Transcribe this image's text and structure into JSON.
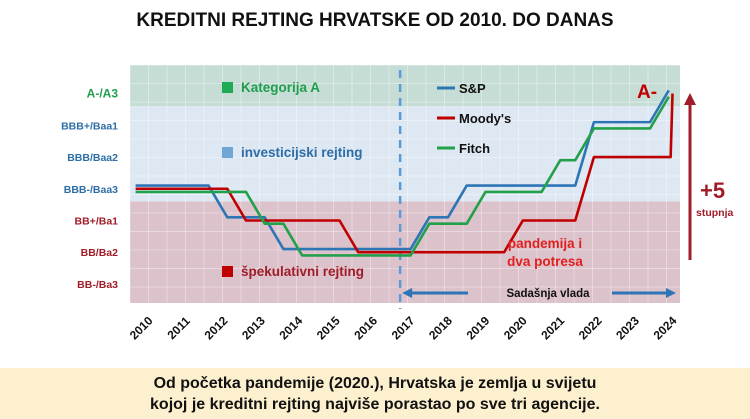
{
  "chart_data": {
    "type": "line",
    "title": "KREDITNI REJTING HRVATSKE OD 2010. DO DANAS",
    "xlabel": "",
    "ylabel": "",
    "x_ticks": [
      "2010",
      "2011",
      "2012",
      "2013",
      "2014",
      "2015",
      "2016",
      "2017",
      "2018",
      "2019",
      "2020",
      "2021",
      "2022",
      "2023",
      "2024"
    ],
    "xlim": [
      2009.7,
      2024.4
    ],
    "y_levels": [
      "BB-/Ba3",
      "BB/Ba2",
      "BB+/Ba1",
      "BBB-/Baa3",
      "BBB/Baa2",
      "BBB+/Baa1",
      "A-/A3"
    ],
    "y_level_colors": [
      "#a01c28",
      "#a01c28",
      "#a01c28",
      "#2e6ea6",
      "#2e6ea6",
      "#2e6ea6",
      "#1f9e4e"
    ],
    "ylim": [
      -0.6,
      6.9
    ],
    "bands": [
      {
        "label": "Kategorija A",
        "from": 5.6,
        "to": 6.9,
        "color": "#c6ddd5",
        "swatch": "#1faa55",
        "text_color": "#1f9e4e"
      },
      {
        "label": "investicijski rejting",
        "from": 2.6,
        "to": 5.6,
        "color": "#dde8f3",
        "swatch": "#6fa6d6",
        "text_color": "#2e6ea6"
      },
      {
        "label": "špekulativni rejting",
        "from": -0.6,
        "to": 2.6,
        "color": "#dcc2ca",
        "swatch": "#c00000",
        "text_color": "#a01c28"
      }
    ],
    "series": [
      {
        "name": "S&P",
        "color": "#2e75b6",
        "offset": 0.1,
        "points": [
          [
            2009.85,
            3
          ],
          [
            2011.8,
            3
          ],
          [
            2012.3,
            2
          ],
          [
            2013.3,
            2
          ],
          [
            2013.8,
            1
          ],
          [
            2017.2,
            1
          ],
          [
            2017.7,
            2
          ],
          [
            2018.2,
            2
          ],
          [
            2018.7,
            3
          ],
          [
            2021.6,
            3
          ],
          [
            2022.1,
            5
          ],
          [
            2023.6,
            5
          ],
          [
            2024.1,
            6
          ]
        ]
      },
      {
        "name": "Moody's",
        "color": "#c00000",
        "offset": 0,
        "points": [
          [
            2009.85,
            3
          ],
          [
            2012.3,
            3
          ],
          [
            2012.8,
            2
          ],
          [
            2015.3,
            2
          ],
          [
            2015.8,
            1
          ],
          [
            2019.7,
            1
          ],
          [
            2020.2,
            2
          ],
          [
            2021.6,
            2
          ],
          [
            2022.1,
            4
          ],
          [
            2024.15,
            4
          ],
          [
            2024.2,
            6
          ]
        ]
      },
      {
        "name": "Fitch",
        "color": "#22a04a",
        "offset": -0.1,
        "points": [
          [
            2009.85,
            3
          ],
          [
            2012.8,
            3
          ],
          [
            2013.3,
            2
          ],
          [
            2013.8,
            2
          ],
          [
            2014.3,
            1
          ],
          [
            2017.2,
            1
          ],
          [
            2017.7,
            2
          ],
          [
            2018.7,
            2
          ],
          [
            2019.2,
            3
          ],
          [
            2020.7,
            3
          ],
          [
            2021.2,
            4
          ],
          [
            2021.6,
            4
          ],
          [
            2022.1,
            5
          ],
          [
            2023.6,
            5
          ],
          [
            2024.1,
            6
          ]
        ]
      }
    ],
    "annotations": {
      "end_label": "A-",
      "arrow_value": "+5",
      "arrow_sub": "stupnja",
      "event_line1": "pandemija i",
      "event_line2": "dva potresa",
      "government_label": "Sadašnja vlada",
      "government_start_year": 2017
    },
    "legend_placement": "top-center"
  },
  "caption": {
    "line1": "Od početka pandemije (2020.), Hrvatska je zemlja u svijetu",
    "line2": "kojoj je kreditni rejting najviše porastao po sve tri agencije."
  }
}
